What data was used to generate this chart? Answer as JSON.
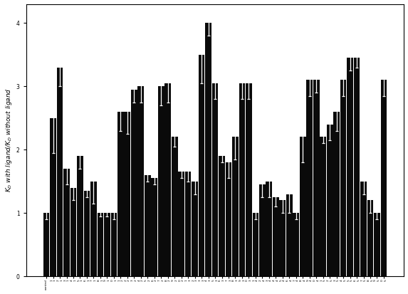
{
  "ylabel": "$K_D$ with ligand/$K_D$ without ligand",
  "ylim": [
    0,
    4.3
  ],
  "yticks": [
    0,
    1,
    2,
    3,
    4
  ],
  "bar_color": "#0a0a0a",
  "error_color": "#ffffff",
  "figsize": [
    5.73,
    4.13
  ],
  "dpi": 100,
  "values": [
    1.0,
    2.5,
    3.3,
    1.7,
    1.4,
    1.9,
    1.35,
    1.5,
    1.0,
    1.0,
    1.0,
    2.6,
    2.6,
    2.95,
    3.0,
    1.6,
    1.55,
    3.0,
    3.05,
    2.2,
    1.65,
    1.65,
    1.5,
    3.5,
    4.0,
    3.05,
    1.9,
    1.8,
    2.2,
    3.05,
    3.05,
    1.0,
    1.45,
    1.5,
    1.25,
    1.2,
    1.3,
    1.0,
    2.2,
    3.1,
    3.1,
    2.2,
    2.4,
    2.6,
    3.1,
    3.45,
    3.45,
    1.5,
    1.2,
    1.0,
    3.1
  ],
  "errors": [
    0.1,
    0.55,
    0.3,
    0.25,
    0.2,
    0.2,
    0.1,
    0.35,
    0.05,
    0.05,
    0.1,
    0.3,
    0.35,
    0.2,
    0.25,
    0.1,
    0.1,
    0.3,
    0.3,
    0.15,
    0.1,
    0.15,
    0.2,
    0.45,
    0.2,
    0.25,
    0.1,
    0.25,
    0.35,
    0.25,
    0.25,
    0.1,
    0.2,
    0.25,
    0.15,
    0.2,
    0.3,
    0.1,
    0.4,
    0.25,
    0.2,
    0.1,
    0.25,
    0.3,
    0.25,
    0.2,
    0.15,
    0.2,
    0.2,
    0.1,
    0.25
  ],
  "row1_labels": [
    "control",
    "1",
    "2",
    "3",
    "4",
    "5",
    "6",
    "7",
    "8",
    "9",
    "0",
    "1",
    "2",
    "3",
    "4",
    "5",
    "6",
    "7",
    "8",
    "9",
    "0",
    "1",
    "2",
    "3",
    "4",
    "5",
    "6",
    "7",
    "8",
    "9",
    "0",
    "1",
    "2",
    "3",
    "4",
    "5",
    "6",
    "7",
    "8",
    "9",
    "0",
    "1",
    "2",
    "3",
    "4",
    "5",
    "6",
    "7",
    "8",
    "9",
    "0"
  ],
  "row2_labels": [
    "",
    "1",
    "1",
    "1",
    "1",
    "1",
    "1",
    "1",
    "1",
    "1",
    "1",
    "2",
    "2",
    "2",
    "2",
    "2",
    "2",
    "2",
    "2",
    "2",
    "2",
    "3",
    "3",
    "3",
    "3",
    "3",
    "3",
    "3",
    "3",
    "3",
    "3",
    "4",
    "4",
    "4",
    "4",
    "4",
    "4",
    "4",
    "4",
    "4",
    "4",
    "5",
    "5",
    "5",
    "5",
    "5",
    "5",
    "5",
    "5",
    "5",
    "5"
  ]
}
